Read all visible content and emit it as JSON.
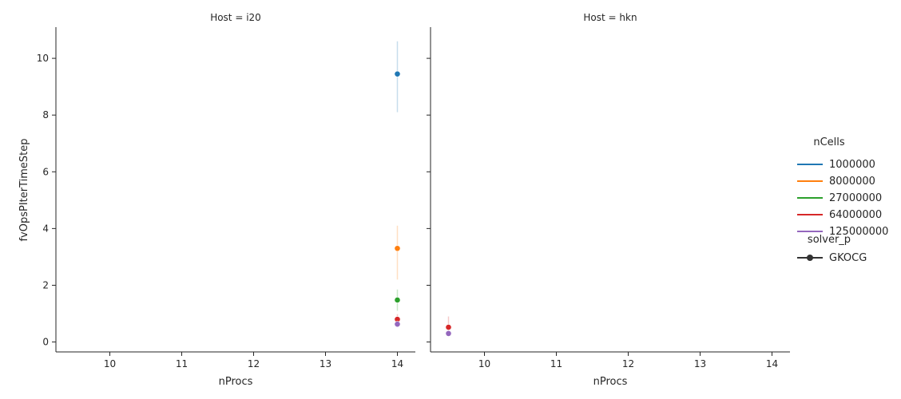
{
  "chart_data": {
    "type": "line",
    "panels": [
      {
        "title": "Host = i20",
        "xlabel": "nProcs",
        "ylabel": "fvOpsPIterTimeStep",
        "series": [
          {
            "name": "1000000",
            "color": "#1f77b4",
            "x": [
              14
            ],
            "y": [
              9.45
            ],
            "ci": [
              [
                8.1,
                10.6
              ]
            ]
          },
          {
            "name": "8000000",
            "color": "#ff7f0e",
            "x": [
              14
            ],
            "y": [
              3.3
            ],
            "ci": [
              [
                2.2,
                4.1
              ]
            ]
          },
          {
            "name": "27000000",
            "color": "#2ca02c",
            "x": [
              14
            ],
            "y": [
              1.48
            ],
            "ci": [
              [
                1.1,
                1.85
              ]
            ]
          },
          {
            "name": "64000000",
            "color": "#d62728",
            "x": [
              14
            ],
            "y": [
              0.8
            ],
            "ci": [
              [
                0.62,
                0.98
              ]
            ]
          },
          {
            "name": "125000000",
            "color": "#9467bd",
            "x": [
              14
            ],
            "y": [
              0.63
            ],
            "ci": [
              [
                0.52,
                0.74
              ]
            ]
          }
        ]
      },
      {
        "title": "Host = hkn",
        "xlabel": "nProcs",
        "ylabel": "",
        "series": [
          {
            "name": "64000000",
            "color": "#d62728",
            "x": [
              9.5
            ],
            "y": [
              0.52
            ],
            "ci": [
              [
                0.3,
                0.9
              ]
            ]
          },
          {
            "name": "125000000",
            "color": "#9467bd",
            "x": [
              9.5
            ],
            "y": [
              0.3
            ],
            "ci": [
              [
                0.22,
                0.38
              ]
            ]
          }
        ]
      }
    ],
    "xlim": [
      9.25,
      14.25
    ],
    "ylim": [
      -0.35,
      11.1
    ],
    "xticks": [
      10,
      11,
      12,
      13,
      14
    ],
    "yticks": [
      0,
      2,
      4,
      6,
      8,
      10
    ],
    "legend": {
      "placement": "right",
      "hue_title": "nCells",
      "hue_entries": [
        {
          "label": "1000000",
          "color": "#1f77b4"
        },
        {
          "label": "8000000",
          "color": "#ff7f0e"
        },
        {
          "label": "27000000",
          "color": "#2ca02c"
        },
        {
          "label": "64000000",
          "color": "#d62728"
        },
        {
          "label": "125000000",
          "color": "#9467bd"
        }
      ],
      "style_title": "solver_p",
      "style_entries": [
        {
          "label": "GKOCG",
          "color": "#333333"
        }
      ]
    },
    "grid": false
  }
}
